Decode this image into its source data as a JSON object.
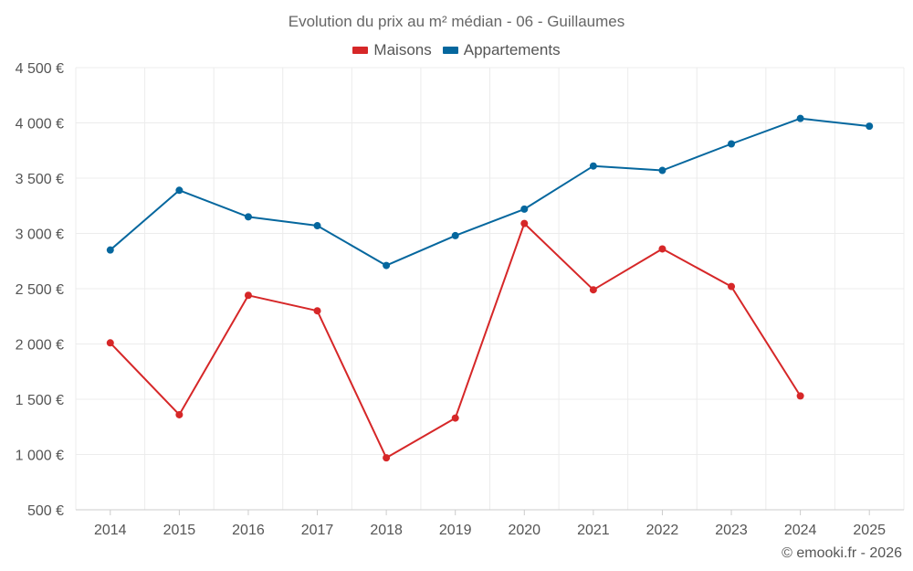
{
  "chart_data": {
    "type": "line",
    "title": "Evolution du prix au m² médian - 06 - Guillaumes",
    "categories": [
      "2014",
      "2015",
      "2016",
      "2017",
      "2018",
      "2019",
      "2020",
      "2021",
      "2022",
      "2023",
      "2024",
      "2025"
    ],
    "yticks": [
      500,
      1000,
      1500,
      2000,
      2500,
      3000,
      3500,
      4000,
      4500
    ],
    "ytick_labels": [
      "500 €",
      "1 000 €",
      "1 500 €",
      "2 000 €",
      "2 500 €",
      "3 000 €",
      "3 500 €",
      "4 000 €",
      "4 500 €"
    ],
    "ylim": [
      500,
      4500
    ],
    "grid": true,
    "legend_position": "top-center",
    "series": [
      {
        "name": "Maisons",
        "color": "#d62728",
        "values": [
          2010,
          1360,
          2440,
          2300,
          970,
          1330,
          3090,
          2490,
          2860,
          2520,
          1530,
          null
        ]
      },
      {
        "name": "Appartements",
        "color": "#05679e",
        "values": [
          2850,
          3390,
          3150,
          3070,
          2710,
          2980,
          3220,
          3610,
          3570,
          3810,
          4040,
          3970
        ]
      }
    ]
  },
  "credit": "© emooki.fr - 2026"
}
